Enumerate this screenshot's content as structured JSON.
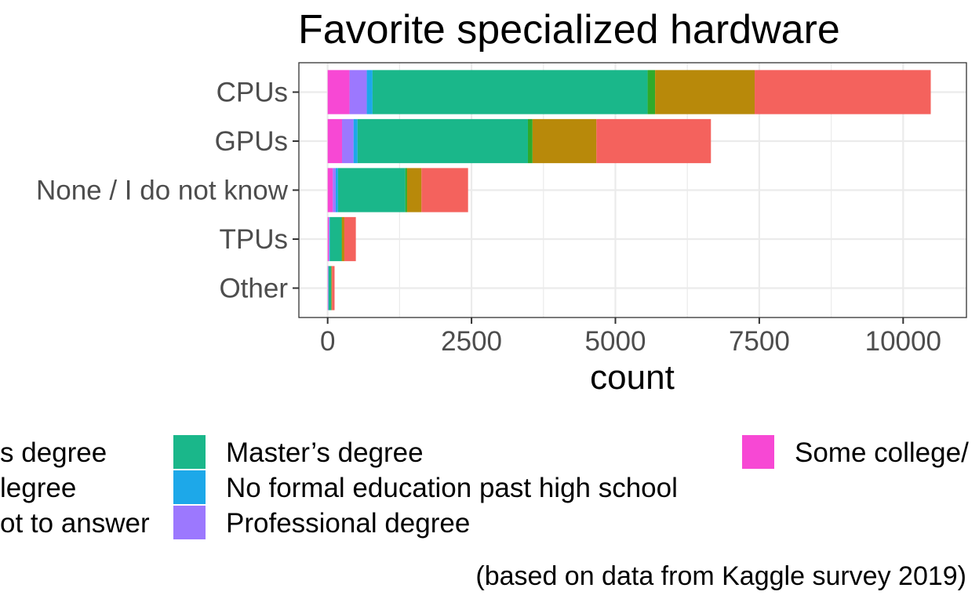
{
  "chart_data": {
    "type": "bar",
    "orientation": "horizontal",
    "stacked": true,
    "title": "Favorite specialized hardware",
    "xlabel": "count",
    "ylabel": "",
    "caption": "(based on data from Kaggle survey 2019)",
    "xlim": [
      -500,
      11100
    ],
    "xticks": [
      0,
      2500,
      5000,
      7500,
      10000
    ],
    "xtick_labels": [
      "0",
      "2500",
      "5000",
      "7500",
      "10000"
    ],
    "grid": true,
    "legend_position": "bottom",
    "categories": [
      "CPUs",
      "GPUs",
      "None / I do not know",
      "TPUs",
      "Other"
    ],
    "series": [
      {
        "name": "Some college/",
        "color": "#F748D4",
        "values": [
          380,
          250,
          90,
          20,
          8
        ]
      },
      {
        "name": "Professional degree",
        "color": "#9C78FE",
        "values": [
          300,
          200,
          50,
          10,
          4
        ]
      },
      {
        "name": "No formal education past high school",
        "color": "#1DA8E9",
        "values": [
          100,
          70,
          40,
          10,
          5
        ]
      },
      {
        "name": "Master’s degree",
        "color": "#1AB78A",
        "values": [
          4780,
          2960,
          1170,
          200,
          45
        ]
      },
      {
        "name": "Doctoral degree",
        "color": "#2FAA2A",
        "values": [
          130,
          80,
          30,
          10,
          3
        ]
      },
      {
        "name": "I prefer not to answer",
        "color": "#B8890A",
        "values": [
          1730,
          1110,
          250,
          40,
          10
        ]
      },
      {
        "name": "Bachelor’s degree",
        "color": "#F4625D",
        "values": [
          3060,
          1990,
          810,
          200,
          45
        ]
      }
    ],
    "legend_visible_text": [
      "s degree",
      "legree",
      "ot to answer",
      "Master’s degree",
      "No formal education past high school",
      "Professional degree",
      "Some college/"
    ]
  }
}
